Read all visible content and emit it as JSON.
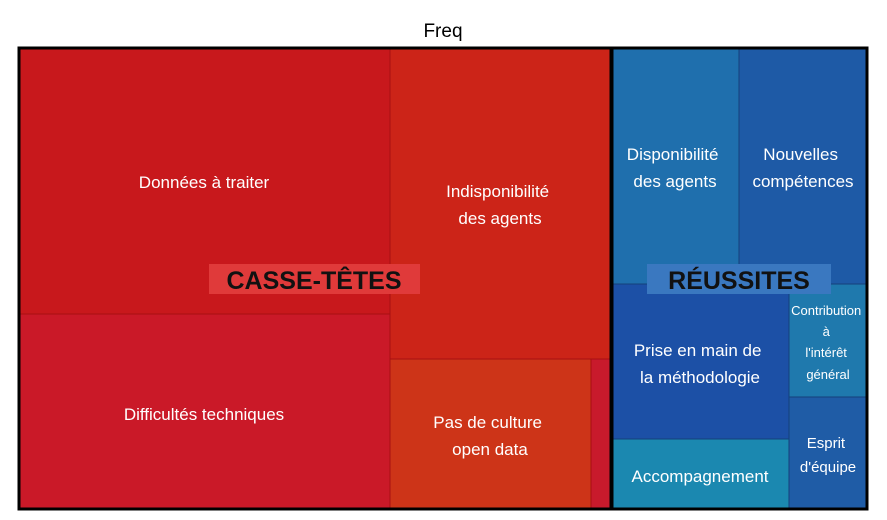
{
  "chart_data": {
    "type": "treemap",
    "title": "Freq",
    "groups": [
      {
        "name": "CASSE-TÊTES",
        "label_bg": "#e03a3a",
        "items": [
          {
            "label": "Données à traiter",
            "color": "#c8181c"
          },
          {
            "label": "Difficultés techniques",
            "color": "#ca1928"
          },
          {
            "label": "Indisponibilité des agents",
            "color": "#cc2418"
          },
          {
            "label": "Pas de culture open data",
            "color": "#cd3418"
          },
          {
            "label": "",
            "color": "#c81a2c"
          }
        ]
      },
      {
        "name": "RÉUSSITES",
        "label_bg": "#3a78c0",
        "items": [
          {
            "label": "Disponibilité des agents",
            "color": "#1f6fad"
          },
          {
            "label": "Nouvelles compétences",
            "color": "#1e5aa6"
          },
          {
            "label": "Prise en main de la méthodologie",
            "color": "#1c50a6"
          },
          {
            "label": "Contribution à l'intérêt général",
            "color": "#1f79ad"
          },
          {
            "label": "Accompagnement",
            "color": "#1b88b0"
          },
          {
            "label": "Esprit d'équipe",
            "color": "#1f5ca6"
          }
        ]
      }
    ]
  }
}
